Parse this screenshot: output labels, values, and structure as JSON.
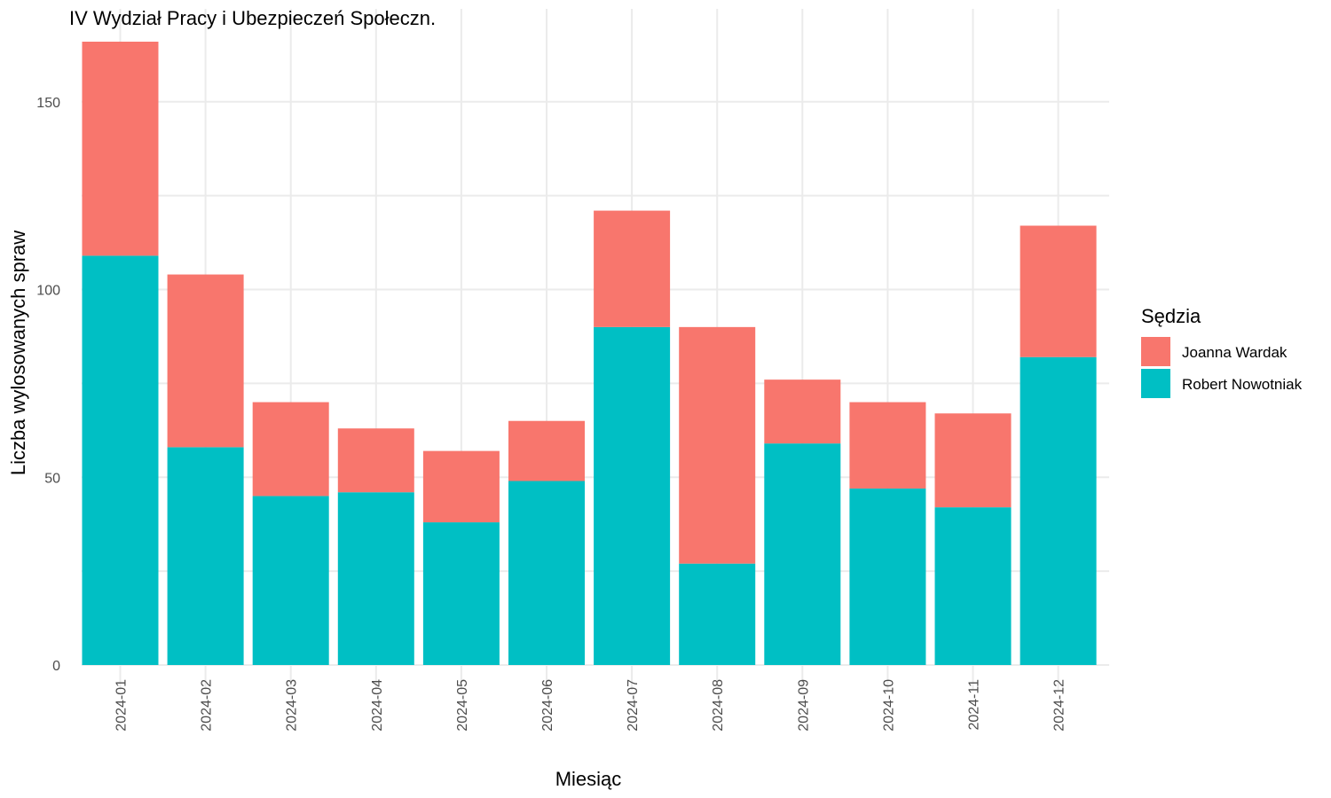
{
  "chart_data": {
    "type": "bar",
    "stacked": true,
    "title": "IV Wydział Pracy i Ubezpieczeń Społeczn.",
    "xlabel": "Miesiąc",
    "ylabel": "Liczba wylosowanych spraw",
    "ylim": [
      0,
      166
    ],
    "yticks": [
      0,
      50,
      100,
      150
    ],
    "categories": [
      "2024-01",
      "2024-02",
      "2024-03",
      "2024-04",
      "2024-05",
      "2024-06",
      "2024-07",
      "2024-08",
      "2024-09",
      "2024-10",
      "2024-11",
      "2024-12"
    ],
    "series": [
      {
        "name": "Robert Nowotniak",
        "color": "#00BFC4",
        "values": [
          109,
          58,
          45,
          46,
          38,
          49,
          90,
          27,
          59,
          47,
          42,
          82
        ]
      },
      {
        "name": "Joanna Wardak",
        "color": "#F8766D",
        "values": [
          57,
          46,
          25,
          17,
          19,
          16,
          31,
          63,
          17,
          23,
          25,
          35
        ]
      }
    ],
    "legend": {
      "title": "Sędzia",
      "position": "right",
      "items": [
        {
          "name": "Joanna Wardak",
          "color": "#F8766D"
        },
        {
          "name": "Robert Nowotniak",
          "color": "#00BFC4"
        }
      ]
    },
    "grid": true
  }
}
